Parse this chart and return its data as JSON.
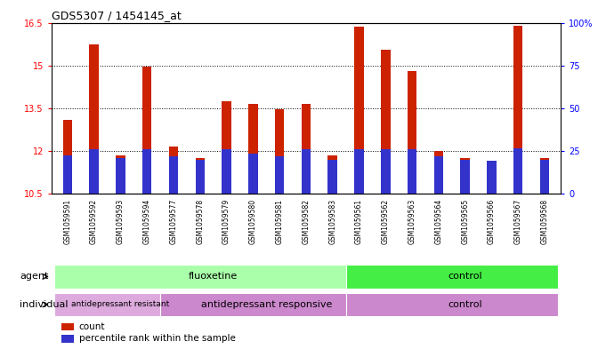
{
  "title": "GDS5307 / 1454145_at",
  "samples": [
    "GSM1059591",
    "GSM1059592",
    "GSM1059593",
    "GSM1059594",
    "GSM1059577",
    "GSM1059578",
    "GSM1059579",
    "GSM1059580",
    "GSM1059581",
    "GSM1059582",
    "GSM1059583",
    "GSM1059561",
    "GSM1059562",
    "GSM1059563",
    "GSM1059564",
    "GSM1059565",
    "GSM1059566",
    "GSM1059567",
    "GSM1059568"
  ],
  "count_values": [
    13.1,
    15.75,
    11.85,
    14.95,
    12.15,
    11.75,
    13.75,
    13.65,
    13.45,
    13.65,
    11.85,
    16.35,
    15.55,
    14.8,
    12.0,
    11.75,
    11.65,
    16.4,
    11.75
  ],
  "percentile_values": [
    11.85,
    12.05,
    11.75,
    12.05,
    11.8,
    11.7,
    12.05,
    11.9,
    11.8,
    12.05,
    11.7,
    12.05,
    12.05,
    12.05,
    11.8,
    11.7,
    11.65,
    12.1,
    11.7
  ],
  "ymin": 10.5,
  "ymax": 16.5,
  "yticks": [
    10.5,
    12.0,
    13.5,
    15.0,
    16.5
  ],
  "ytick_labels": [
    "10.5",
    "12",
    "13.5",
    "15",
    "16.5"
  ],
  "right_yticks": [
    0,
    25,
    50,
    75,
    100
  ],
  "right_ytick_labels": [
    "0",
    "25",
    "50",
    "75",
    "100%"
  ],
  "gridlines": [
    12.0,
    13.5,
    15.0
  ],
  "bar_color": "#cc2200",
  "percentile_color": "#3333cc",
  "bar_width": 0.35,
  "agent_groups": [
    {
      "label": "fluoxetine",
      "start": 0,
      "end": 10,
      "color": "#aaffaa"
    },
    {
      "label": "control",
      "start": 11,
      "end": 18,
      "color": "#44ee44"
    }
  ],
  "individual_groups": [
    {
      "label": "antidepressant resistant",
      "start": 0,
      "end": 3,
      "color": "#ddaadd"
    },
    {
      "label": "antidepressant responsive",
      "start": 4,
      "end": 10,
      "color": "#cc88cc"
    },
    {
      "label": "control",
      "start": 11,
      "end": 18,
      "color": "#cc88cc"
    }
  ],
  "xtick_bg": "#cccccc",
  "chart_bg": "#ffffff",
  "legend_items": [
    {
      "label": "count",
      "color": "#cc2200"
    },
    {
      "label": "percentile rank within the sample",
      "color": "#3333cc"
    }
  ]
}
